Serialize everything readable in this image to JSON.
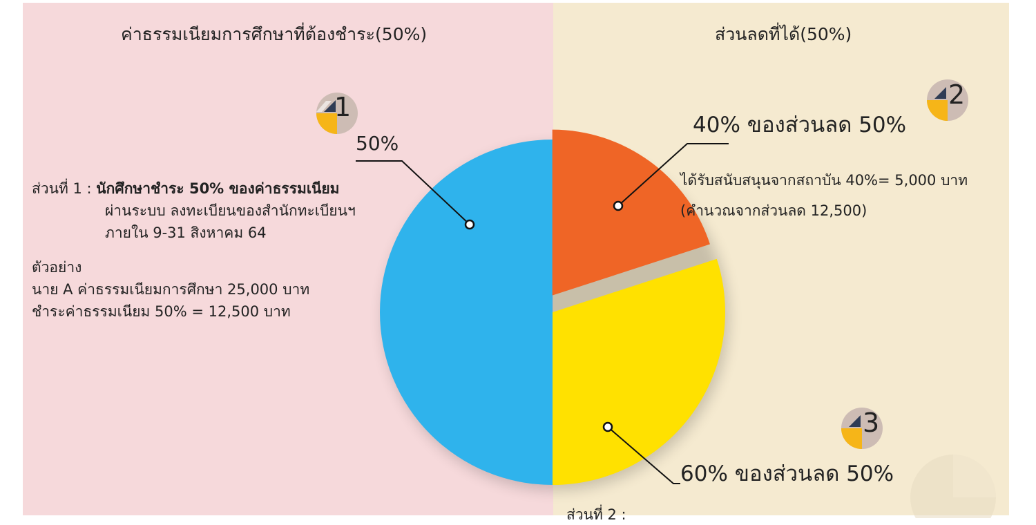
{
  "left_panel": {
    "heading": "ค่าธรรมเนียมการศึกษาที่ต้องชำระ(50%)",
    "badge_number": "1",
    "callout_label": "50%",
    "part1_prefix": "ส่วนที่ 1 :",
    "part1_bold": "นักศึกษาชำระ 50% ของค่าธรรมเนียม",
    "part1_line2": "ผ่านระบบ ลงทะเบียนของสำนักทะเบียนฯ",
    "part1_line3": "ภายใน 9-31 สิงหาคม 64",
    "example_title": "ตัวอย่าง",
    "example_line1": "นาย A ค่าธรรมเนียมการศึกษา 25,000 บาท",
    "example_line2": "ชำระค่าธรรมเนียม 50% = 12,500 บาท"
  },
  "right_panel": {
    "heading": "ส่วนลดที่ได้(50%)",
    "badge2_number": "2",
    "callout2_label": "40% ของส่วนลด 50%",
    "callout2_line1": "ได้รับสนับสนุนจากสถาบัน 40%= 5,000 บาท",
    "callout2_line2": "(คำนวณจากส่วนลด 12,500)",
    "badge3_number": "3",
    "callout3_label": "60% ของส่วนลด 50%",
    "part2_prefix": "ส่วนที่ 2 :"
  },
  "chart_data": {
    "type": "pie",
    "title": "",
    "slices": [
      {
        "label": "50%",
        "value": 50,
        "color": "#2fb3ec"
      },
      {
        "label": "40% ของส่วนลด 50%",
        "value": 20,
        "color": "#ef6526"
      },
      {
        "label": "60% ของส่วนลด 50%",
        "value": 30,
        "color": "#ffe100"
      }
    ],
    "start_angle_deg": 0,
    "direction": "clockwise-from-bottom"
  },
  "colors": {
    "left_bg": "#f6d9db",
    "right_bg": "#f5ead0",
    "badge_bg": "#cdbcb4",
    "badge_yellow": "#f6b518"
  }
}
